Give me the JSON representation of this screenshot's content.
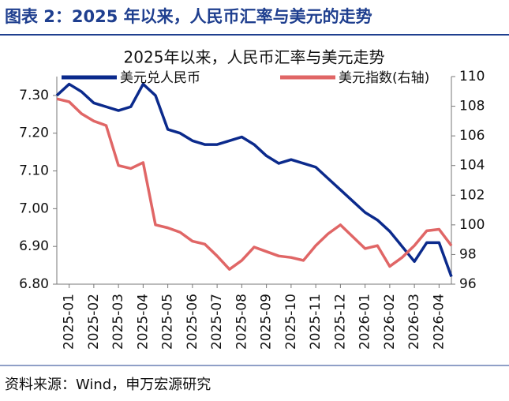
{
  "header": {
    "title": "图表 2：2025 年以来，人民币汇率与美元的走势"
  },
  "source": "资料来源：Wind，申万宏源研究",
  "chart_data": {
    "type": "line",
    "title": "2025年以来，人民币汇率与美元走势",
    "xlim": [
      -0.5,
      15.5
    ],
    "xticks": [
      {
        "value": 0,
        "label": "2025-01"
      },
      {
        "value": 1,
        "label": "2025-02"
      },
      {
        "value": 2,
        "label": "2025-03"
      },
      {
        "value": 3,
        "label": "2025-04"
      },
      {
        "value": 4,
        "label": "2025-05"
      },
      {
        "value": 5,
        "label": "2025-06"
      },
      {
        "value": 6,
        "label": "2025-07"
      },
      {
        "value": 7,
        "label": "2025-08"
      },
      {
        "value": 8,
        "label": "2025-09"
      },
      {
        "value": 9,
        "label": "2025-10"
      },
      {
        "value": 10,
        "label": "2025-11"
      },
      {
        "value": 11,
        "label": "2025-12"
      },
      {
        "value": 12,
        "label": "2026-01"
      },
      {
        "value": 13,
        "label": "2026-02"
      },
      {
        "value": 14,
        "label": "2026-03"
      },
      {
        "value": 15,
        "label": "2026-04"
      }
    ],
    "ylim": [
      6.8,
      7.35
    ],
    "yticks": [
      {
        "value": 6.8,
        "label": "6.80"
      },
      {
        "value": 6.9,
        "label": "6.90"
      },
      {
        "value": 7.0,
        "label": "7.00"
      },
      {
        "value": 7.1,
        "label": "7.10"
      },
      {
        "value": 7.2,
        "label": "7.20"
      },
      {
        "value": 7.3,
        "label": "7.30"
      }
    ],
    "y2lim": [
      96,
      110
    ],
    "y2ticks": [
      96,
      98,
      100,
      102,
      104,
      106,
      108,
      110
    ],
    "x": [
      -0.5,
      0,
      0.5,
      1,
      1.5,
      2,
      2.5,
      3,
      3.5,
      4,
      4.5,
      5,
      5.5,
      6,
      6.5,
      7,
      7.5,
      8,
      8.5,
      9,
      9.5,
      10,
      10.5,
      11,
      11.5,
      12,
      12.5,
      13,
      13.5,
      14,
      14.5,
      15,
      15.5
    ],
    "series": [
      {
        "name": "美元兑人民币",
        "color": "#0b2a8c",
        "values": [
          7.3,
          7.33,
          7.31,
          7.28,
          7.27,
          7.26,
          7.27,
          7.33,
          7.3,
          7.21,
          7.2,
          7.18,
          7.17,
          7.17,
          7.18,
          7.19,
          7.17,
          7.14,
          7.12,
          7.13,
          7.12,
          7.11,
          7.08,
          7.05,
          7.02,
          6.99,
          6.97,
          6.94,
          6.9,
          6.86,
          6.91,
          6.91,
          6.82
        ]
      },
      {
        "name": "美元指数(右轴)",
        "color": "#e06666",
        "axis": "y2",
        "values": [
          108.5,
          108.3,
          107.5,
          107.0,
          106.7,
          104.0,
          103.8,
          104.2,
          100.0,
          99.8,
          99.5,
          98.9,
          98.7,
          97.9,
          97.0,
          97.6,
          98.5,
          98.2,
          97.9,
          97.8,
          97.6,
          98.6,
          99.4,
          100.0,
          99.2,
          98.4,
          98.6,
          97.2,
          97.8,
          98.6,
          99.6,
          99.7,
          98.6
        ]
      }
    ]
  }
}
